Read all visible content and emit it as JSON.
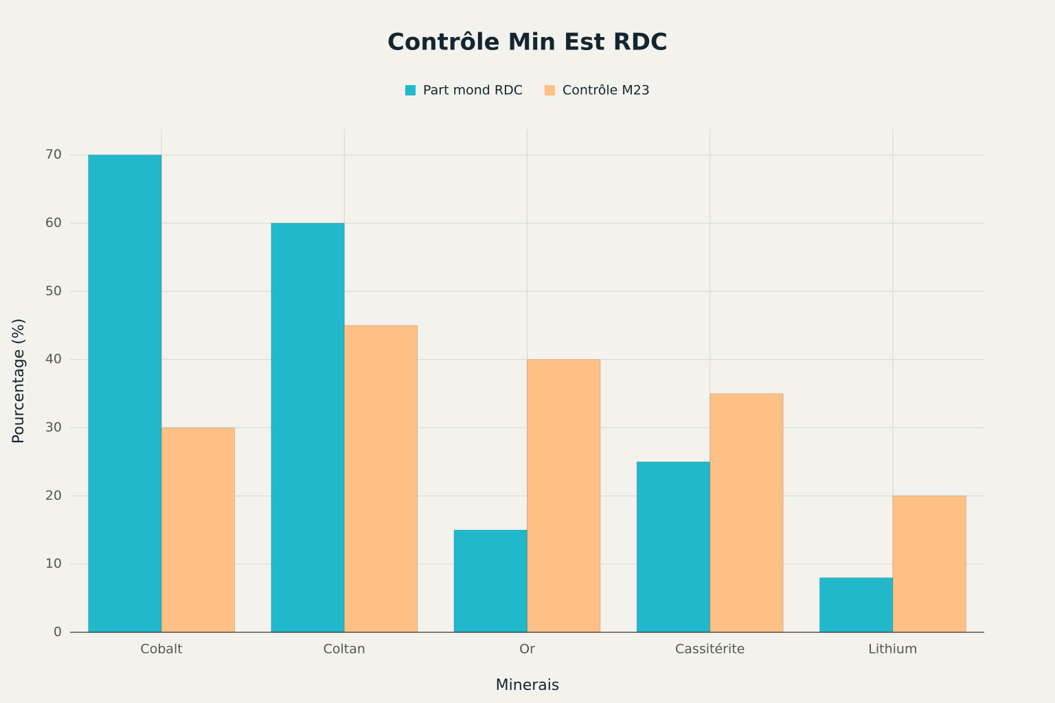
{
  "chart_data": {
    "type": "bar",
    "title": "Contrôle Min Est RDC",
    "x_label": "Minerais",
    "y_label": "Pourcentage (%)",
    "categories": [
      "Cobalt",
      "Coltan",
      "Or",
      "Cassitérite",
      "Lithium"
    ],
    "series": [
      {
        "name": "Part mond RDC",
        "color": "#21b8cc",
        "values": [
          70,
          60,
          15,
          25,
          8
        ]
      },
      {
        "name": "Contrôle M23",
        "color": "#ffc085",
        "values": [
          30,
          45,
          40,
          35,
          20
        ]
      }
    ],
    "ylim": [
      0,
      73.8
    ],
    "yticks": [
      0,
      10,
      20,
      30,
      40,
      50,
      60,
      70
    ],
    "grid": true,
    "legend": "top"
  }
}
